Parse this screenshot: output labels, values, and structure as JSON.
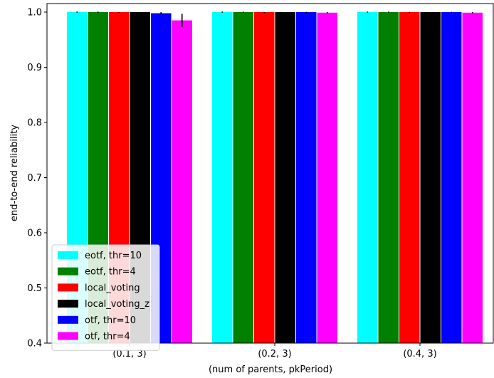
{
  "chart_data": {
    "type": "bar",
    "xlabel": "(num of parents, pkPeriod)",
    "ylabel": "end-to-end reliability",
    "ylim": [
      0.4,
      1.0
    ],
    "yticks": [
      "0.4",
      "0.5",
      "0.6",
      "0.7",
      "0.8",
      "0.9",
      "1.0"
    ],
    "categories": [
      "(0.1, 3)",
      "(0.2, 3)",
      "(0.4, 3)"
    ],
    "legend_position": "lower-left",
    "grid": false,
    "series": [
      {
        "name": "eotf, thr=10",
        "color": "#00ffff",
        "values": [
          1.0,
          1.0,
          1.0
        ],
        "errors": [
          0.001,
          0.001,
          0.001
        ]
      },
      {
        "name": "eotf, thr=4",
        "color": "#008000",
        "values": [
          1.0,
          1.0,
          1.0
        ],
        "errors": [
          0.001,
          0.001,
          0.001
        ]
      },
      {
        "name": "local_voting",
        "color": "#ff0000",
        "values": [
          1.0,
          1.0,
          1.0
        ],
        "errors": [
          0.0,
          0.0,
          0.0
        ]
      },
      {
        "name": "local_voting_z",
        "color": "#000000",
        "values": [
          1.0,
          1.0,
          1.0
        ],
        "errors": [
          0.0,
          0.0,
          0.0
        ]
      },
      {
        "name": "otf, thr=10",
        "color": "#0000ff",
        "values": [
          0.998,
          1.0,
          1.0
        ],
        "errors": [
          0.002,
          0.0005,
          0.0005
        ]
      },
      {
        "name": "otf, thr=4",
        "color": "#ff00ff",
        "values": [
          0.985,
          0.999,
          0.999
        ],
        "errors": [
          0.012,
          0.001,
          0.001
        ]
      }
    ]
  }
}
